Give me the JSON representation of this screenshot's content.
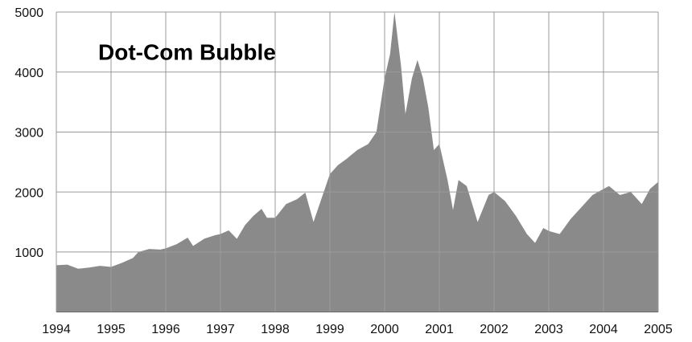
{
  "chart_data": {
    "type": "area",
    "title": "Dot-Com Bubble",
    "color": "#8a8a8a",
    "grid": true,
    "xlim": [
      1994,
      2005
    ],
    "xticks": [
      1994,
      1995,
      1996,
      1997,
      1998,
      1999,
      2000,
      2001,
      2002,
      2003,
      2004,
      2005
    ],
    "ylim": [
      0,
      5000
    ],
    "yticks": [
      1000,
      2000,
      3000,
      4000,
      5000
    ],
    "x": [
      1994.0,
      1994.2,
      1994.4,
      1994.6,
      1994.8,
      1995.0,
      1995.2,
      1995.4,
      1995.5,
      1995.7,
      1995.9,
      1996.0,
      1996.2,
      1996.4,
      1996.5,
      1996.7,
      1996.9,
      1997.0,
      1997.15,
      1997.3,
      1997.45,
      1997.6,
      1997.75,
      1997.85,
      1998.0,
      1998.2,
      1998.4,
      1998.55,
      1998.7,
      1998.85,
      1999.0,
      1999.15,
      1999.3,
      1999.5,
      1999.7,
      1999.85,
      2000.0,
      2000.1,
      2000.18,
      2000.3,
      2000.38,
      2000.5,
      2000.6,
      2000.7,
      2000.8,
      2000.9,
      2001.0,
      2001.15,
      2001.25,
      2001.35,
      2001.5,
      2001.7,
      2001.9,
      2002.0,
      2002.2,
      2002.4,
      2002.6,
      2002.75,
      2002.9,
      2003.0,
      2003.2,
      2003.4,
      2003.6,
      2003.8,
      2004.0,
      2004.1,
      2004.3,
      2004.5,
      2004.7,
      2004.85,
      2005.0
    ],
    "values": [
      780,
      790,
      720,
      740,
      770,
      750,
      820,
      900,
      1000,
      1050,
      1040,
      1060,
      1130,
      1240,
      1100,
      1220,
      1280,
      1300,
      1360,
      1220,
      1450,
      1600,
      1720,
      1570,
      1570,
      1800,
      1880,
      1990,
      1500,
      1900,
      2300,
      2450,
      2550,
      2700,
      2800,
      3000,
      3900,
      4300,
      5000,
      4100,
      3300,
      3900,
      4200,
      3900,
      3400,
      2700,
      2800,
      2200,
      1700,
      2200,
      2100,
      1500,
      1950,
      2000,
      1850,
      1600,
      1300,
      1150,
      1400,
      1350,
      1300,
      1550,
      1750,
      1950,
      2050,
      2100,
      1950,
      2000,
      1800,
      2050,
      2170
    ]
  }
}
